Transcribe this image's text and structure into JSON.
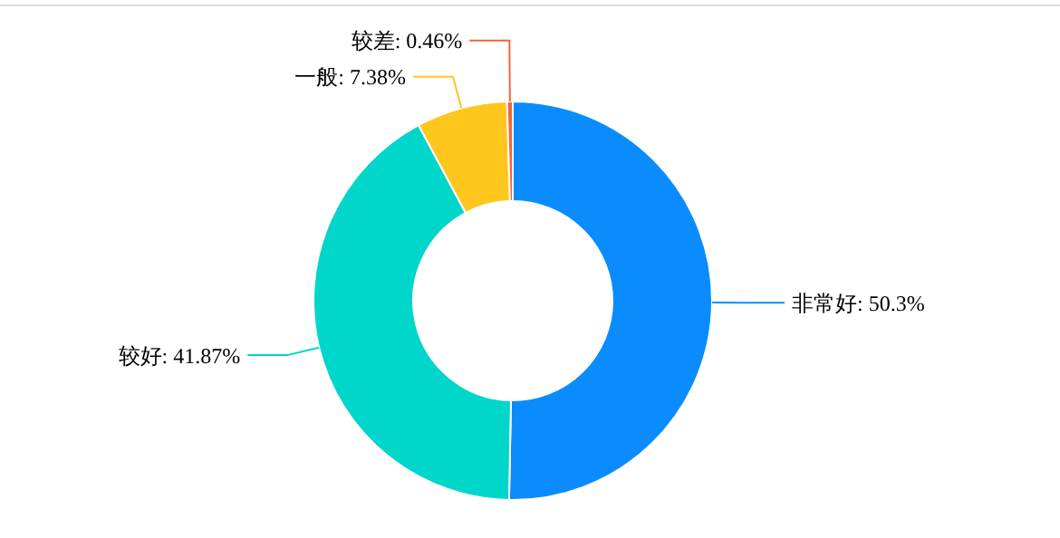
{
  "chart_data": {
    "type": "donut",
    "categories": [
      "非常好",
      "较好",
      "一般",
      "较差"
    ],
    "values": [
      50.3,
      41.87,
      7.38,
      0.46
    ],
    "value_labels": [
      "50.3%",
      "41.87%",
      "7.38%",
      "0.46%"
    ],
    "colors": [
      "#0a8cff",
      "#00d6c9",
      "#ffc61e",
      "#f2653a"
    ]
  }
}
